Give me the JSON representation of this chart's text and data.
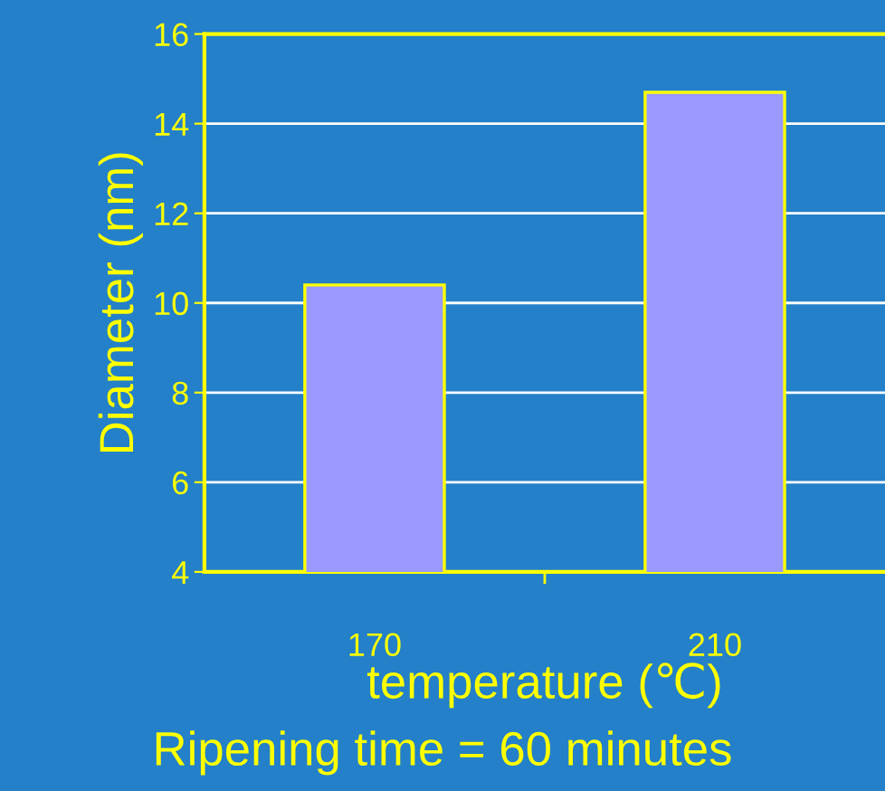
{
  "chart_data": {
    "type": "bar",
    "categories": [
      "170",
      "210"
    ],
    "values": [
      10.4,
      14.7
    ],
    "color": "#9999ff",
    "xlabel": "temperature (℃)",
    "ylabel": "Diameter (nm)",
    "annotations": [
      "Ripening time = 60 minutes"
    ],
    "ylim": [
      4,
      16
    ],
    "yticks": [
      4,
      6,
      8,
      10,
      12,
      14,
      16
    ],
    "grid": "y",
    "legend": false
  }
}
